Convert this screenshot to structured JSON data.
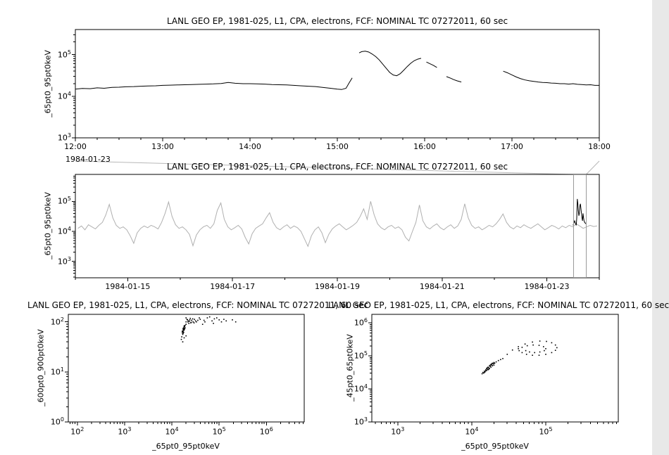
{
  "app": {
    "background": "#ffffff",
    "foreground": "#000000",
    "context_line_color": "#b0b0b0",
    "connector_color": "#b8b8b8",
    "selection_border_color": "#9a9a9a"
  },
  "chart_data": [
    {
      "id": "top",
      "type": "line",
      "title": "LANL GEO EP, 1981-025, L1, CPA, electrons, FCF: NOMINAL TC 07272011, 60 sec",
      "xlabel": "",
      "ylabel": "_65pt0_95pt0keV",
      "x_context_label": "1984-01-23",
      "x_scale": "time",
      "y_scale": "log",
      "x_range_hours": [
        12,
        18
      ],
      "x_ticks_hours": [
        12,
        13,
        14,
        15,
        16,
        17,
        18
      ],
      "x_tick_labels": [
        "12:00",
        "13:00",
        "14:00",
        "15:00",
        "16:00",
        "17:00",
        "18:00"
      ],
      "x_minor_step_hours": 0.25,
      "y_log_range": [
        3,
        5.6
      ],
      "y_tick_exponents": [
        3,
        4,
        5
      ],
      "line_color": "#000000",
      "grid": false,
      "segments_log10": [
        [
          [
            12.0,
            4.17
          ],
          [
            12.08,
            4.185
          ],
          [
            12.17,
            4.18
          ],
          [
            12.25,
            4.2
          ],
          [
            12.33,
            4.19
          ],
          [
            12.42,
            4.21
          ],
          [
            12.5,
            4.215
          ],
          [
            12.58,
            4.225
          ],
          [
            12.67,
            4.23
          ],
          [
            12.75,
            4.24
          ],
          [
            12.83,
            4.245
          ],
          [
            12.92,
            4.25
          ],
          [
            13.0,
            4.26
          ],
          [
            13.08,
            4.265
          ],
          [
            13.17,
            4.27
          ],
          [
            13.25,
            4.275
          ],
          [
            13.33,
            4.28
          ],
          [
            13.42,
            4.285
          ],
          [
            13.5,
            4.29
          ],
          [
            13.58,
            4.295
          ],
          [
            13.67,
            4.305
          ],
          [
            13.75,
            4.33
          ],
          [
            13.83,
            4.31
          ],
          [
            13.92,
            4.3
          ],
          [
            14.0,
            4.3
          ],
          [
            14.08,
            4.295
          ],
          [
            14.17,
            4.29
          ],
          [
            14.25,
            4.28
          ],
          [
            14.33,
            4.275
          ],
          [
            14.42,
            4.27
          ],
          [
            14.5,
            4.26
          ],
          [
            14.58,
            4.25
          ],
          [
            14.67,
            4.24
          ],
          [
            14.75,
            4.23
          ],
          [
            14.83,
            4.21
          ],
          [
            14.92,
            4.19
          ],
          [
            15.0,
            4.17
          ],
          [
            15.05,
            4.16
          ],
          [
            15.1,
            4.19
          ],
          [
            15.13,
            4.3
          ],
          [
            15.17,
            4.44
          ]
        ],
        [
          [
            15.25,
            5.04
          ],
          [
            15.28,
            5.07
          ],
          [
            15.32,
            5.08
          ],
          [
            15.36,
            5.06
          ],
          [
            15.4,
            5.01
          ],
          [
            15.44,
            4.95
          ],
          [
            15.48,
            4.87
          ],
          [
            15.52,
            4.77
          ],
          [
            15.56,
            4.67
          ],
          [
            15.6,
            4.57
          ],
          [
            15.64,
            4.51
          ],
          [
            15.68,
            4.49
          ],
          [
            15.72,
            4.54
          ],
          [
            15.76,
            4.62
          ],
          [
            15.8,
            4.71
          ],
          [
            15.84,
            4.79
          ],
          [
            15.88,
            4.85
          ],
          [
            15.92,
            4.89
          ],
          [
            15.96,
            4.91
          ]
        ],
        [
          [
            16.02,
            4.82
          ],
          [
            16.06,
            4.78
          ],
          [
            16.1,
            4.74
          ],
          [
            16.14,
            4.69
          ]
        ],
        [
          [
            16.25,
            4.47
          ],
          [
            16.3,
            4.43
          ],
          [
            16.33,
            4.4
          ],
          [
            16.37,
            4.37
          ],
          [
            16.42,
            4.34
          ]
        ],
        [
          [
            16.9,
            4.6
          ],
          [
            16.95,
            4.56
          ],
          [
            17.0,
            4.51
          ],
          [
            17.05,
            4.46
          ],
          [
            17.1,
            4.42
          ],
          [
            17.15,
            4.39
          ],
          [
            17.2,
            4.37
          ],
          [
            17.25,
            4.355
          ],
          [
            17.3,
            4.34
          ],
          [
            17.35,
            4.33
          ],
          [
            17.4,
            4.325
          ],
          [
            17.45,
            4.315
          ],
          [
            17.5,
            4.31
          ],
          [
            17.55,
            4.3
          ],
          [
            17.6,
            4.3
          ],
          [
            17.65,
            4.29
          ],
          [
            17.7,
            4.3
          ],
          [
            17.75,
            4.285
          ],
          [
            17.8,
            4.28
          ],
          [
            17.85,
            4.27
          ],
          [
            17.9,
            4.275
          ],
          [
            17.95,
            4.26
          ],
          [
            18.0,
            4.26
          ]
        ]
      ]
    },
    {
      "id": "context",
      "type": "line",
      "title": "LANL GEO EP, 1981-025, L1, CPA, electrons, FCF: NOMINAL TC 07272011, 60 sec",
      "xlabel": "",
      "ylabel": "_65pt0_95pt0keV",
      "x_scale": "time",
      "y_scale": "log",
      "x_epoch": "1984-01-14T00:00",
      "x_range_days": [
        0,
        10
      ],
      "x_ticks_days": [
        1,
        3,
        5,
        7,
        9
      ],
      "x_tick_labels": [
        "1984-01-15",
        "1984-01-17",
        "1984-01-19",
        "1984-01-21",
        "1984-01-23"
      ],
      "x_minor_step_days": 1,
      "y_log_range": [
        2.45,
        5.9
      ],
      "y_tick_exponents": [
        3,
        4,
        5
      ],
      "gray_color": "#b0b0b0",
      "highlight_color": "#000000",
      "grid": false,
      "selection_days": [
        9.5,
        9.75
      ],
      "gray_series": {
        "t_start": 0.05,
        "t_step": 0.0665,
        "y_log": [
          4.1,
          4.18,
          4.05,
          4.22,
          4.15,
          4.08,
          4.2,
          4.3,
          4.55,
          4.9,
          4.45,
          4.2,
          4.1,
          4.15,
          4.05,
          3.85,
          3.6,
          3.95,
          4.1,
          4.18,
          4.12,
          4.2,
          4.15,
          4.08,
          4.3,
          4.6,
          4.98,
          4.5,
          4.22,
          4.1,
          4.15,
          4.05,
          3.9,
          3.52,
          3.88,
          4.05,
          4.15,
          4.2,
          4.1,
          4.25,
          4.7,
          4.95,
          4.4,
          4.15,
          4.05,
          4.12,
          4.2,
          4.08,
          3.8,
          3.58,
          3.92,
          4.1,
          4.18,
          4.25,
          4.45,
          4.62,
          4.3,
          4.12,
          4.05,
          4.15,
          4.22,
          4.1,
          4.18,
          4.12,
          4.0,
          3.75,
          3.5,
          3.85,
          4.05,
          4.15,
          3.95,
          3.62,
          3.9,
          4.08,
          4.18,
          4.25,
          4.15,
          4.05,
          4.12,
          4.2,
          4.3,
          4.5,
          4.75,
          4.4,
          5.0,
          4.55,
          4.25,
          4.12,
          4.05,
          4.15,
          4.2,
          4.1,
          4.15,
          4.05,
          3.8,
          3.68,
          4.0,
          4.3,
          4.88,
          4.35,
          4.15,
          4.08,
          4.18,
          4.25,
          4.12,
          4.05,
          4.15,
          4.22,
          4.1,
          4.18,
          4.4,
          4.92,
          4.45,
          4.2,
          4.1,
          4.15,
          4.05,
          4.12,
          4.2,
          4.15,
          4.25,
          4.4,
          4.58,
          4.3,
          4.15,
          4.08,
          4.18,
          4.12,
          4.22,
          4.15,
          4.1,
          4.18,
          4.25,
          4.15,
          4.05,
          4.12,
          4.2,
          4.15,
          4.08,
          4.18,
          4.12,
          4.2,
          4.15,
          4.25,
          4.18,
          4.1,
          4.15,
          4.2,
          4.16,
          4.18
        ]
      },
      "black_segment": {
        "t_start": 9.5,
        "t_step": 0.01,
        "y_log": [
          4.2,
          4.25,
          4.3,
          4.35,
          4.3,
          4.25,
          4.2,
          4.45,
          5.08,
          4.95,
          4.7,
          4.52,
          4.6,
          4.85,
          4.92,
          4.75,
          4.6,
          4.45,
          4.35,
          4.6,
          4.45,
          4.35,
          4.3,
          4.28,
          4.26,
          4.25
        ]
      }
    },
    {
      "id": "scatter1",
      "type": "scatter",
      "title": "LANL GEO EP, 1981-025, L1, CPA, electrons, FCF: NOMINAL TC 07272011, 60 sec",
      "xlabel": "_65pt0_95pt0keV",
      "ylabel": "_600pt0_900pt0keV",
      "x_scale": "log",
      "y_scale": "log",
      "x_log_range": [
        1.81,
        6.8
      ],
      "y_log_range": [
        0,
        2.15
      ],
      "x_tick_exponents": [
        2,
        3,
        4,
        5,
        6
      ],
      "y_tick_exponents": [
        0,
        1,
        2
      ],
      "point_color": "#000000",
      "grid": false,
      "point_groups": {
        "dense_streak": [
          [
            4.22,
            1.78
          ],
          [
            4.23,
            1.82
          ],
          [
            4.24,
            1.85
          ],
          [
            4.25,
            1.88
          ],
          [
            4.24,
            1.8
          ],
          [
            4.26,
            1.9
          ],
          [
            4.25,
            1.83
          ],
          [
            4.27,
            1.86
          ],
          [
            4.23,
            1.75
          ],
          [
            4.26,
            1.92
          ],
          [
            4.28,
            1.88
          ],
          [
            4.25,
            1.79
          ],
          [
            4.24,
            1.87
          ],
          [
            4.27,
            1.91
          ],
          [
            4.22,
            1.81
          ],
          [
            4.26,
            1.84
          ],
          [
            4.3,
            1.95
          ],
          [
            4.28,
            1.93
          ],
          [
            4.24,
            1.77
          ],
          [
            4.25,
            1.86
          ]
        ],
        "blob": [
          [
            4.3,
            2.0
          ],
          [
            4.35,
            2.02
          ],
          [
            4.4,
            1.98
          ],
          [
            4.32,
            2.05
          ],
          [
            4.38,
            2.04
          ],
          [
            4.45,
            2.0
          ],
          [
            4.36,
            1.97
          ],
          [
            4.42,
            2.03
          ],
          [
            4.3,
            2.08
          ],
          [
            4.5,
            2.02
          ],
          [
            4.34,
            2.0
          ],
          [
            4.44,
            2.06
          ],
          [
            4.37,
            2.01
          ],
          [
            4.41,
            1.99
          ],
          [
            4.33,
            2.04
          ],
          [
            4.48,
            2.05
          ],
          [
            4.52,
            2.0
          ],
          [
            4.39,
            2.07
          ],
          [
            4.47,
            1.98
          ],
          [
            4.55,
            2.03
          ]
        ],
        "spread_right": [
          [
            4.6,
            2.05
          ],
          [
            4.7,
            2.0
          ],
          [
            4.75,
            2.08
          ],
          [
            4.85,
            2.02
          ],
          [
            4.9,
            2.06
          ],
          [
            5.0,
            2.04
          ],
          [
            5.05,
            2.0
          ],
          [
            5.1,
            2.05
          ],
          [
            4.65,
            1.95
          ],
          [
            4.8,
            2.1
          ],
          [
            4.95,
            2.08
          ],
          [
            5.15,
            2.02
          ],
          [
            4.68,
            2.03
          ],
          [
            4.58,
            2.08
          ],
          [
            4.88,
            1.97
          ],
          [
            5.28,
            2.04
          ],
          [
            5.35,
            2.0
          ]
        ],
        "below": [
          [
            4.2,
            1.65
          ],
          [
            4.21,
            1.7
          ],
          [
            4.23,
            1.6
          ],
          [
            4.3,
            1.72
          ],
          [
            4.26,
            1.68
          ]
        ]
      }
    },
    {
      "id": "scatter2",
      "type": "scatter",
      "title": "LANL GEO EP, 1981-025, L1, CPA, electrons, FCF: NOMINAL TC 07272011, 60 sec",
      "xlabel": "_65pt0_95pt0keV",
      "ylabel": "_45pt0_65pt0keV",
      "x_scale": "log",
      "y_scale": "log",
      "x_log_range": [
        2.65,
        5.98
      ],
      "y_log_range": [
        3,
        6.26
      ],
      "x_tick_exponents": [
        3,
        4,
        5
      ],
      "y_tick_exponents": [
        3,
        4,
        5,
        6
      ],
      "point_color": "#000000",
      "grid": false,
      "point_groups": {
        "cluster": [
          [
            4.14,
            4.46
          ],
          [
            4.15,
            4.5
          ],
          [
            4.16,
            4.48
          ],
          [
            4.17,
            4.54
          ],
          [
            4.18,
            4.52
          ],
          [
            4.19,
            4.58
          ],
          [
            4.2,
            4.56
          ],
          [
            4.2,
            4.62
          ],
          [
            4.21,
            4.6
          ],
          [
            4.22,
            4.66
          ],
          [
            4.22,
            4.58
          ],
          [
            4.23,
            4.64
          ],
          [
            4.24,
            4.7
          ],
          [
            4.24,
            4.62
          ],
          [
            4.25,
            4.68
          ],
          [
            4.26,
            4.74
          ],
          [
            4.26,
            4.66
          ],
          [
            4.27,
            4.72
          ],
          [
            4.28,
            4.78
          ],
          [
            4.28,
            4.7
          ],
          [
            4.29,
            4.76
          ],
          [
            4.3,
            4.8
          ],
          [
            4.3,
            4.72
          ],
          [
            4.31,
            4.78
          ],
          [
            4.25,
            4.72
          ],
          [
            4.23,
            4.6
          ],
          [
            4.21,
            4.64
          ],
          [
            4.19,
            4.55
          ],
          [
            4.17,
            4.5
          ],
          [
            4.27,
            4.76
          ]
        ],
        "trail": [
          [
            4.3,
            4.78
          ],
          [
            4.33,
            4.82
          ],
          [
            4.36,
            4.86
          ],
          [
            4.39,
            4.89
          ]
        ],
        "loop_outer": [
          [
            4.42,
            4.92
          ],
          [
            4.48,
            5.05
          ],
          [
            4.55,
            5.18
          ],
          [
            4.63,
            5.28
          ],
          [
            4.72,
            5.36
          ],
          [
            4.82,
            5.42
          ],
          [
            4.92,
            5.45
          ],
          [
            5.01,
            5.44
          ],
          [
            5.08,
            5.4
          ],
          [
            5.13,
            5.33
          ],
          [
            5.15,
            5.25
          ],
          [
            5.13,
            5.17
          ],
          [
            5.08,
            5.1
          ],
          [
            5.0,
            5.05
          ],
          [
            4.91,
            5.02
          ],
          [
            4.82,
            5.02
          ],
          [
            4.74,
            5.05
          ],
          [
            4.68,
            5.1
          ],
          [
            4.64,
            5.16
          ],
          [
            4.63,
            5.22
          ]
        ],
        "loop_inner": [
          [
            4.68,
            5.26
          ],
          [
            4.75,
            5.31
          ],
          [
            4.83,
            5.33
          ],
          [
            4.91,
            5.32
          ],
          [
            4.97,
            5.28
          ],
          [
            5.0,
            5.22
          ],
          [
            4.98,
            5.16
          ],
          [
            4.92,
            5.12
          ],
          [
            4.85,
            5.1
          ],
          [
            4.78,
            5.12
          ],
          [
            4.73,
            5.16
          ]
        ]
      }
    }
  ]
}
